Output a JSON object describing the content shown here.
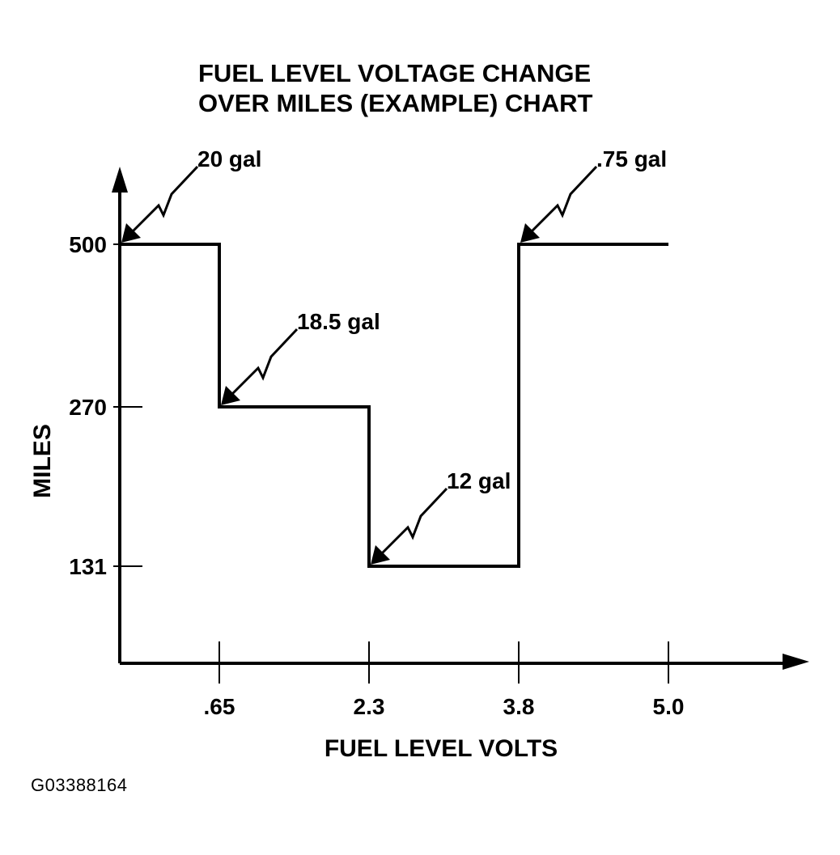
{
  "chart_data": {
    "type": "line",
    "step": true,
    "title": [
      "FUEL LEVEL VOLTAGE CHANGE",
      "OVER MILES (EXAMPLE) CHART"
    ],
    "xlabel": "FUEL LEVEL VOLTS",
    "ylabel": "MILES",
    "x_ticks": [
      {
        "value": 0.65,
        "label": ".65"
      },
      {
        "value": 2.3,
        "label": "2.3"
      },
      {
        "value": 3.8,
        "label": "3.8"
      },
      {
        "value": 5.0,
        "label": "5.0"
      }
    ],
    "y_ticks": [
      {
        "value": 500,
        "label": "500"
      },
      {
        "value": 270,
        "label": "270"
      },
      {
        "value": 131,
        "label": "131"
      }
    ],
    "segments": [
      {
        "x_start": 0,
        "x_end": 0.65,
        "y": 500
      },
      {
        "x_start": 0.65,
        "x_end": 2.3,
        "y": 270
      },
      {
        "x_start": 2.3,
        "x_end": 3.8,
        "y": 131
      },
      {
        "x_start": 3.8,
        "x_end": 5.0,
        "y": 500
      }
    ],
    "annotations": [
      {
        "text": "20 gal",
        "x": 0,
        "y": 500
      },
      {
        "text": "18.5 gal",
        "x": 0.65,
        "y": 270
      },
      {
        "text": "12 gal",
        "x": 2.3,
        "y": 131
      },
      {
        "text": ".75 gal",
        "x": 3.8,
        "y": 500
      }
    ],
    "grid": false,
    "legend": "none"
  },
  "figure_id": "G03388164"
}
